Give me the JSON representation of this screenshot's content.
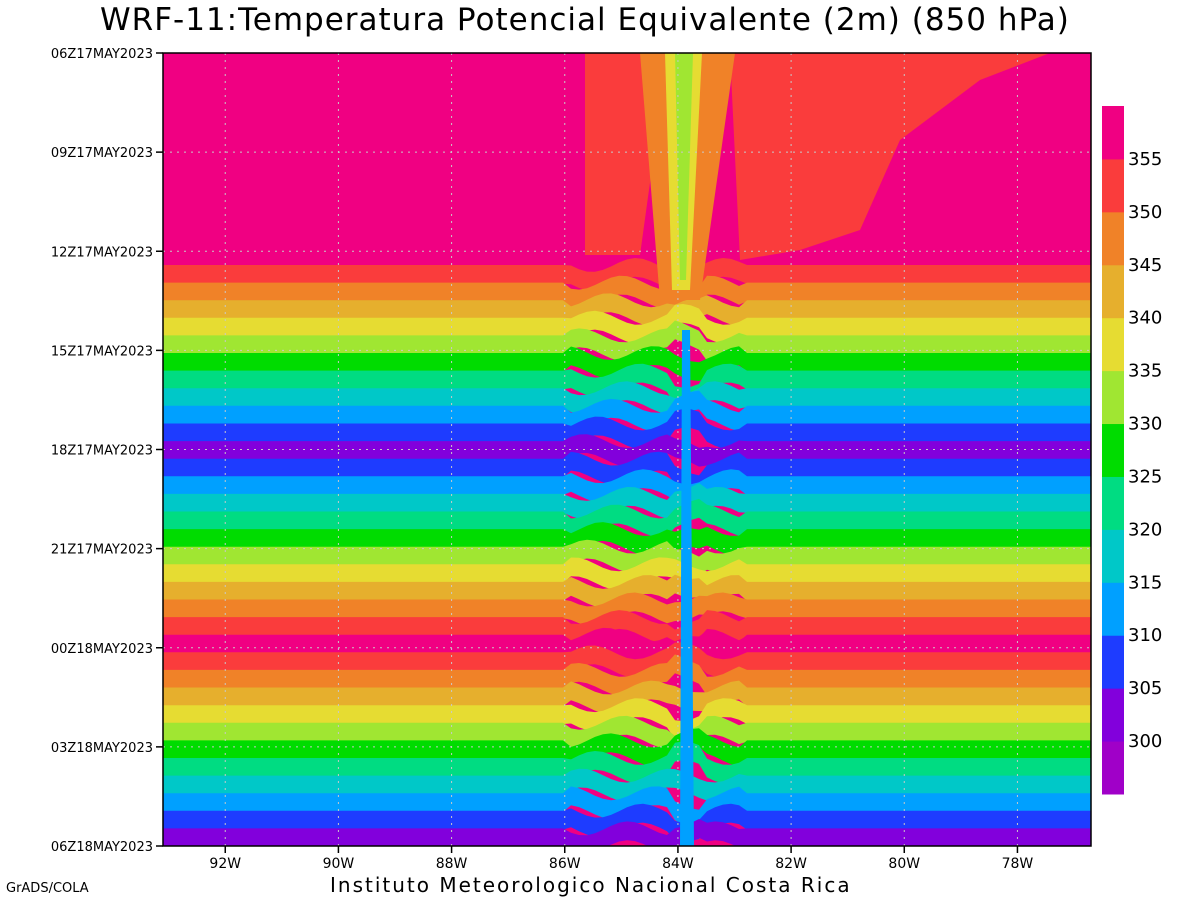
{
  "title": "WRF-11:Temperatura Potencial Equivalente (2m) (850 hPa)",
  "footer": "Instituto Meteorologico Nacional Costa Rica",
  "credit": "GrADS/COLA",
  "chart_data": {
    "type": "heatmap",
    "x_ticks": [
      "92W",
      "90W",
      "88W",
      "86W",
      "84W",
      "82W",
      "80W",
      "78W"
    ],
    "x_tick_values": [
      -92,
      -90,
      -88,
      -86,
      -84,
      -82,
      -80,
      -78
    ],
    "xlim": [
      -93.1,
      -76.7
    ],
    "y_ticks": [
      "06Z17MAY2023",
      "09Z17MAY2023",
      "12Z17MAY2023",
      "15Z17MAY2023",
      "18Z17MAY2023",
      "21Z17MAY2023",
      "00Z18MAY2023",
      "03Z18MAY2023",
      "06Z18MAY2023"
    ],
    "legend_labels": [
      "300",
      "305",
      "310",
      "315",
      "320",
      "325",
      "330",
      "335",
      "340",
      "345",
      "350",
      "355"
    ],
    "legend_colors": [
      "#a000c8",
      "#8200dc",
      "#1e3cff",
      "#00a0ff",
      "#00c8c8",
      "#00dc82",
      "#00dc00",
      "#a0e632",
      "#e6dc32",
      "#e6af2d",
      "#f08228",
      "#fa3c3c",
      "#f00082"
    ],
    "legend_placement": "right",
    "grid": true
  }
}
